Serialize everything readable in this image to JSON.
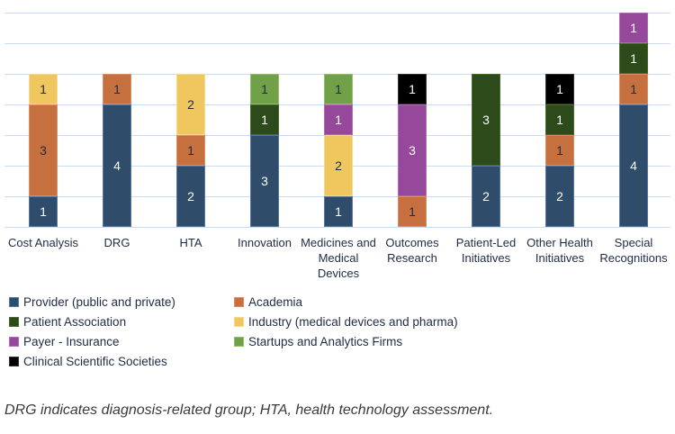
{
  "chart_data": {
    "type": "bar",
    "subtype": "stacked-vertical",
    "title": "",
    "xlabel": "",
    "ylabel": "",
    "ylim": [
      0,
      7
    ],
    "grid": true,
    "gridline_color": "#C9DCF0",
    "legend_position": "bottom-left",
    "series_colors": {
      "provider": {
        "label": "Provider (public and private)",
        "color": "#2F4D6A",
        "edge": "#56779E",
        "text": "#FFFFFF"
      },
      "academia": {
        "label": "Academia",
        "color": "#C7703F",
        "edge": "#D98F63",
        "text": "#1F2B45"
      },
      "patient": {
        "label": "Patient Association",
        "color": "#2C4A1A",
        "edge": "#4A6A2E",
        "text": "#FFFFFF"
      },
      "industry": {
        "label": "Industry (medical devices and pharma)",
        "color": "#EFC75E",
        "edge": "#F4DA90",
        "text": "#1F2B45"
      },
      "payer": {
        "label": "Payer - Insurance",
        "color": "#96489B",
        "edge": "#AF6BB3",
        "text": "#FFFFFF"
      },
      "startups": {
        "label": "Startups and Analytics Firms",
        "color": "#70A047",
        "edge": "#93BE6E",
        "text": "#1F2B45"
      },
      "clinical": {
        "label": "Clinical Scientific Societies",
        "color": "#000000",
        "edge": "#333333",
        "text": "#FFFFFF"
      }
    },
    "legend_order": [
      "provider",
      "academia",
      "patient",
      "industry",
      "payer",
      "startups",
      "clinical"
    ],
    "categories": [
      {
        "label": "Cost Analysis",
        "segments": [
          [
            "provider",
            1
          ],
          [
            "academia",
            3
          ],
          [
            "industry",
            1
          ]
        ]
      },
      {
        "label": "DRG",
        "segments": [
          [
            "provider",
            4
          ],
          [
            "academia",
            1
          ]
        ]
      },
      {
        "label": "HTA",
        "segments": [
          [
            "provider",
            2
          ],
          [
            "academia",
            1
          ],
          [
            "industry",
            2
          ]
        ]
      },
      {
        "label": "Innovation",
        "segments": [
          [
            "provider",
            3
          ],
          [
            "patient",
            1
          ],
          [
            "startups",
            1
          ]
        ]
      },
      {
        "label": "Medicines and Medical Devices",
        "segments": [
          [
            "provider",
            1
          ],
          [
            "industry",
            2
          ],
          [
            "payer",
            1
          ],
          [
            "startups",
            1
          ]
        ]
      },
      {
        "label": "Outcomes Research",
        "segments": [
          [
            "academia",
            1
          ],
          [
            "payer",
            3
          ],
          [
            "clinical",
            1
          ]
        ]
      },
      {
        "label": "Patient-Led Initiatives",
        "segments": [
          [
            "provider",
            2
          ],
          [
            "patient",
            3
          ]
        ]
      },
      {
        "label": "Other Health Initiatives",
        "segments": [
          [
            "provider",
            2
          ],
          [
            "academia",
            1
          ],
          [
            "patient",
            1
          ],
          [
            "clinical",
            1
          ]
        ]
      },
      {
        "label": "Special Recognitions",
        "segments": [
          [
            "provider",
            4
          ],
          [
            "academia",
            1
          ],
          [
            "patient",
            1
          ],
          [
            "payer",
            1
          ]
        ]
      }
    ]
  },
  "footnote": "DRG indicates diagnosis-related group; HTA, health technology assessment."
}
